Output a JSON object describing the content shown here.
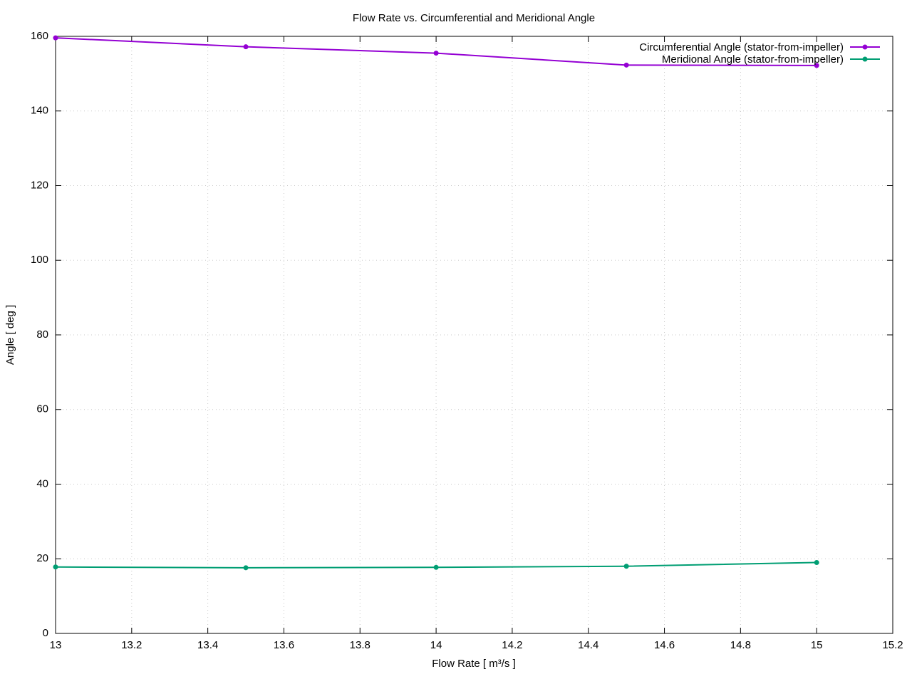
{
  "chart_data": {
    "type": "line",
    "title": "Flow Rate vs. Circumferential and Meridional Angle",
    "x_label": "Flow Rate [ m³/s ]",
    "y_label": "Angle [ deg ]",
    "x": [
      13,
      13.5,
      14,
      14.5,
      15
    ],
    "series": [
      {
        "name": "Circumferential Angle (stator-from-impeller)",
        "color": "#9400d3",
        "values": [
          159.6,
          157.2,
          155.5,
          152.3,
          152.2
        ]
      },
      {
        "name": "Meridional Angle (stator-from-impeller)",
        "color": "#009e73",
        "values": [
          17.8,
          17.6,
          17.7,
          18.0,
          19.0
        ]
      }
    ],
    "xlim": [
      13,
      15.2
    ],
    "xticks": [
      13,
      13.2,
      13.4,
      13.6,
      13.8,
      14,
      14.2,
      14.4,
      14.6,
      14.8,
      15,
      15.2
    ],
    "ylim": [
      0,
      160
    ],
    "yticks": [
      0,
      20,
      40,
      60,
      80,
      100,
      120,
      140,
      160
    ],
    "grid": true,
    "legend": "top-right"
  }
}
